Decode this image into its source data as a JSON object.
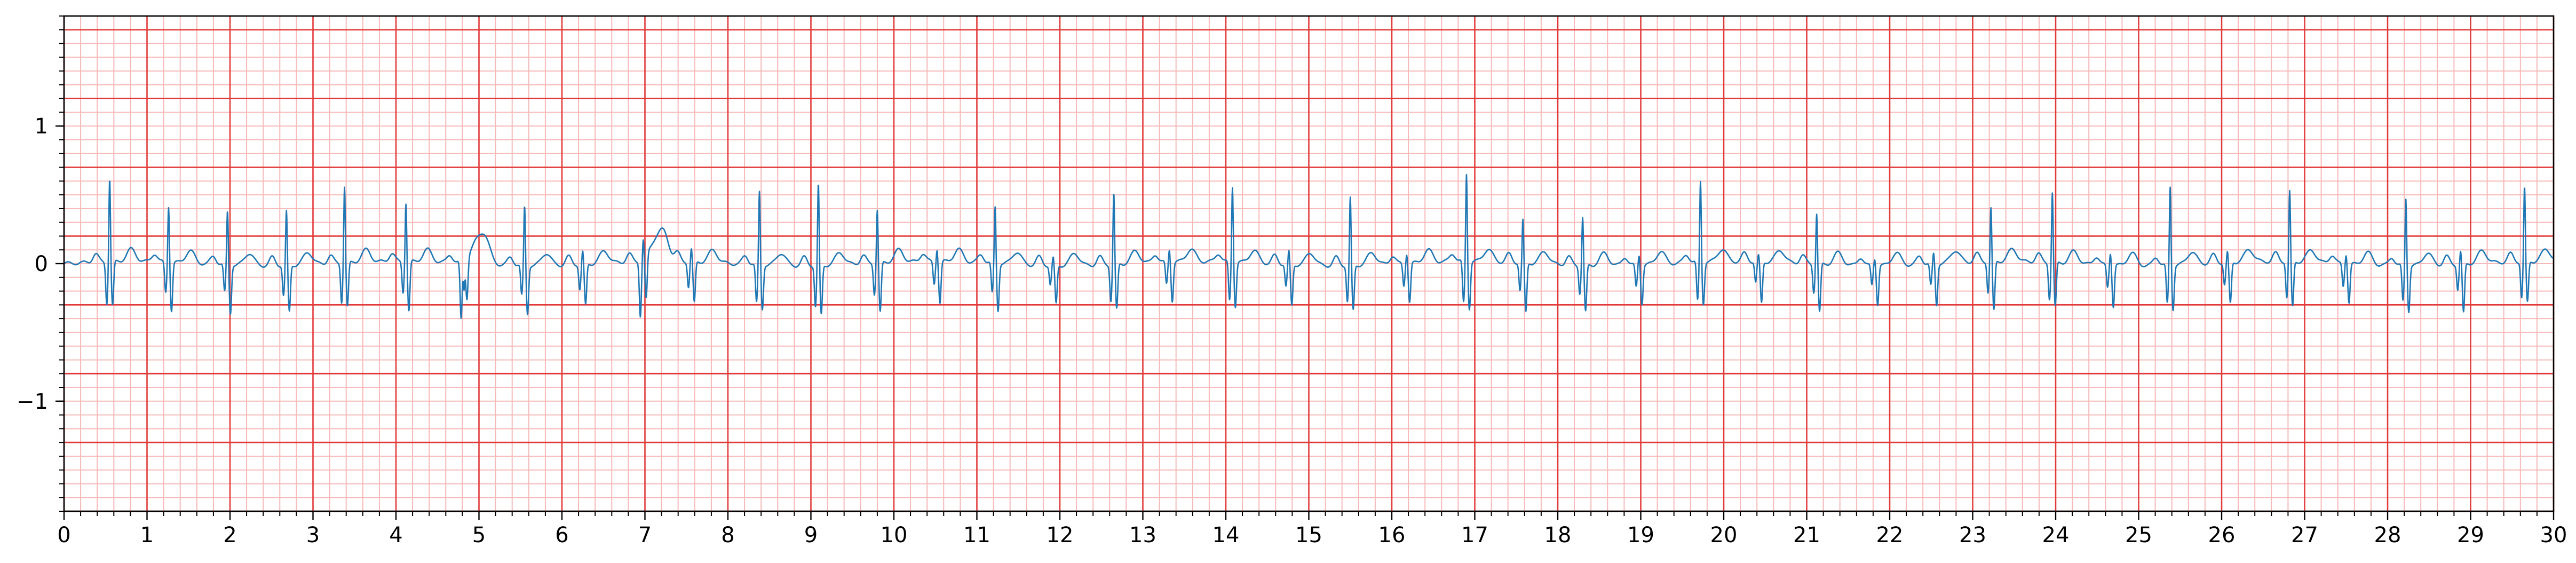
{
  "chart_data": {
    "type": "line",
    "title": "",
    "xlabel": "",
    "ylabel": "",
    "xlim": [
      0,
      30
    ],
    "ylim": [
      -1.8,
      1.8
    ],
    "x_major_step": 1,
    "x_minor_step": 0.2,
    "y_major_step": 0.5,
    "y_minor_step": 0.1,
    "x_tick_labels": [
      "0",
      "1",
      "2",
      "3",
      "4",
      "5",
      "6",
      "7",
      "8",
      "9",
      "10",
      "11",
      "12",
      "13",
      "14",
      "15",
      "16",
      "17",
      "18",
      "19",
      "20",
      "21",
      "22",
      "23",
      "24",
      "25",
      "26",
      "27",
      "28",
      "29",
      "30"
    ],
    "y_ticks": [
      {
        "value": 1,
        "label": "1"
      },
      {
        "value": 0,
        "label": "0"
      },
      {
        "value": -1,
        "label": "−1"
      }
    ],
    "grid": "ecg-paper",
    "colors": {
      "major_grid": "#e23a3a",
      "minor_grid": "#f6b8b8",
      "trace": "#1f77b4"
    },
    "series": [
      {
        "beats": [
          {
            "t": 0.55,
            "r": 0.62,
            "q": -0.3,
            "s": -0.32
          },
          {
            "t": 1.26,
            "r": 0.42,
            "q": -0.22,
            "s": -0.35
          },
          {
            "t": 1.97,
            "r": 0.4,
            "q": -0.2,
            "s": -0.35
          },
          {
            "t": 2.68,
            "r": 0.4,
            "q": -0.22,
            "s": -0.34
          },
          {
            "t": 3.38,
            "r": 0.57,
            "q": -0.28,
            "s": -0.32
          },
          {
            "t": 4.12,
            "r": 0.44,
            "q": -0.22,
            "s": -0.36
          },
          {
            "t": 4.82,
            "r": -0.2,
            "q": -0.42,
            "s": -0.3,
            "note": "ectopic"
          },
          {
            "t": 5.55,
            "r": 0.44,
            "q": -0.22,
            "s": -0.35
          },
          {
            "t": 6.25,
            "r": 0.1,
            "q": -0.18,
            "s": -0.3
          },
          {
            "t": 6.98,
            "r": 0.15,
            "q": -0.4,
            "s": -0.32,
            "note": "ectopic"
          },
          {
            "t": 7.56,
            "r": 0.1,
            "q": -0.18,
            "s": -0.3
          },
          {
            "t": 8.38,
            "r": 0.54,
            "q": -0.28,
            "s": -0.32
          },
          {
            "t": 9.09,
            "r": 0.6,
            "q": -0.3,
            "s": -0.36
          },
          {
            "t": 9.8,
            "r": 0.4,
            "q": -0.22,
            "s": -0.36
          },
          {
            "t": 10.52,
            "r": 0.1,
            "q": -0.16,
            "s": -0.3
          },
          {
            "t": 11.22,
            "r": 0.42,
            "q": -0.22,
            "s": -0.34
          },
          {
            "t": 11.92,
            "r": 0.06,
            "q": -0.14,
            "s": -0.28
          },
          {
            "t": 12.65,
            "r": 0.53,
            "q": -0.26,
            "s": -0.33
          },
          {
            "t": 13.32,
            "r": 0.1,
            "q": -0.16,
            "s": -0.28
          },
          {
            "t": 14.08,
            "r": 0.56,
            "q": -0.28,
            "s": -0.32
          },
          {
            "t": 14.76,
            "r": 0.1,
            "q": -0.16,
            "s": -0.3
          },
          {
            "t": 15.5,
            "r": 0.5,
            "q": -0.26,
            "s": -0.33
          },
          {
            "t": 16.18,
            "r": 0.08,
            "q": -0.16,
            "s": -0.28
          },
          {
            "t": 16.9,
            "r": 0.65,
            "q": -0.3,
            "s": -0.34
          },
          {
            "t": 17.58,
            "r": 0.32,
            "q": -0.2,
            "s": -0.36
          },
          {
            "t": 18.3,
            "r": 0.36,
            "q": -0.2,
            "s": -0.34
          },
          {
            "t": 18.98,
            "r": 0.08,
            "q": -0.16,
            "s": -0.28
          },
          {
            "t": 19.72,
            "r": 0.6,
            "q": -0.28,
            "s": -0.3
          },
          {
            "t": 20.42,
            "r": 0.05,
            "q": -0.15,
            "s": -0.3
          },
          {
            "t": 21.12,
            "r": 0.38,
            "q": -0.2,
            "s": -0.35
          },
          {
            "t": 21.82,
            "r": 0.06,
            "q": -0.14,
            "s": -0.28
          },
          {
            "t": 22.53,
            "r": 0.08,
            "q": -0.16,
            "s": -0.3
          },
          {
            "t": 23.22,
            "r": 0.4,
            "q": -0.22,
            "s": -0.36
          },
          {
            "t": 23.96,
            "r": 0.52,
            "q": -0.26,
            "s": -0.32
          },
          {
            "t": 24.66,
            "r": 0.1,
            "q": -0.16,
            "s": -0.3
          },
          {
            "t": 25.38,
            "r": 0.58,
            "q": -0.28,
            "s": -0.32
          },
          {
            "t": 26.07,
            "r": 0.08,
            "q": -0.16,
            "s": -0.3
          },
          {
            "t": 26.82,
            "r": 0.52,
            "q": -0.26,
            "s": -0.33
          },
          {
            "t": 27.5,
            "r": 0.08,
            "q": -0.16,
            "s": -0.28
          },
          {
            "t": 28.22,
            "r": 0.5,
            "q": -0.26,
            "s": -0.33
          },
          {
            "t": 28.88,
            "r": 0.1,
            "q": -0.18,
            "s": -0.36
          },
          {
            "t": 29.65,
            "r": 0.55,
            "q": -0.26,
            "s": -0.3
          }
        ]
      }
    ]
  }
}
